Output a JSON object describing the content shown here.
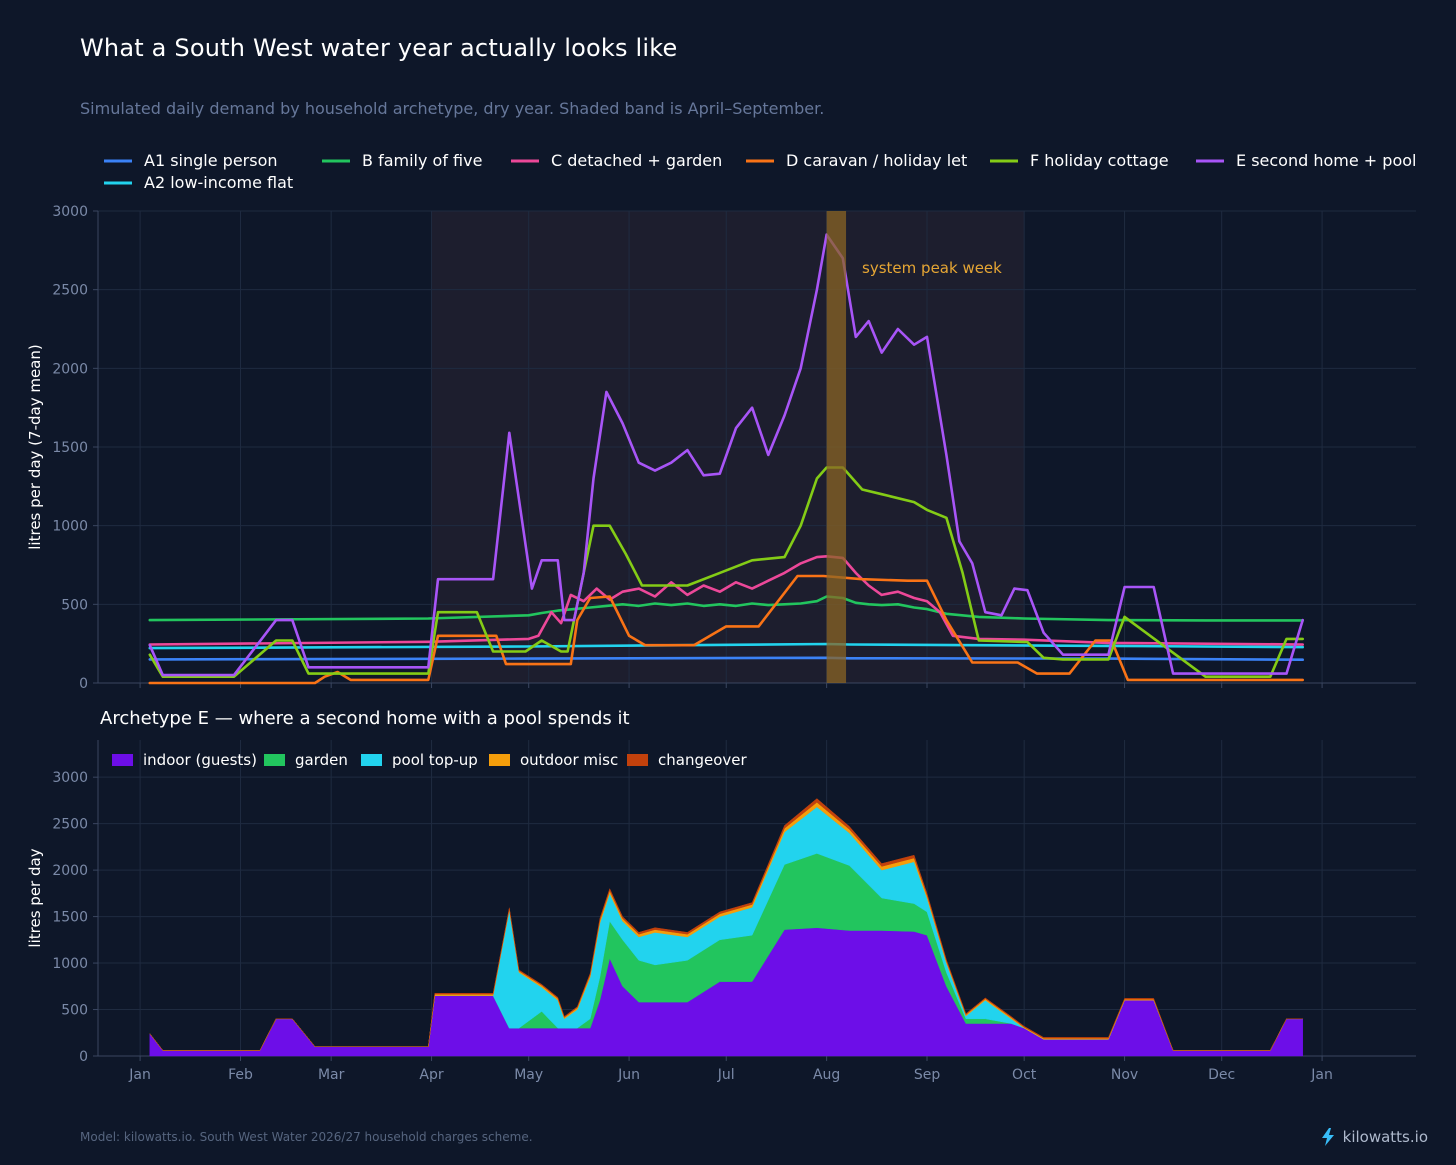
{
  "title": "What a South West water year actually looks like",
  "subtitle": "Simulated daily demand by household archetype, dry year. Shaded band is April–September.",
  "footer": {
    "note": "Model: kilowatts.io. South West Water 2026/27 household charges scheme.",
    "brand": "kilowatts.io",
    "brand_icon": "lightning-bolt-icon"
  },
  "colors": {
    "background": "#0e1729",
    "grid": "#1f2b40",
    "season_band": "#1d1e2e",
    "peak_week": "#8a6424",
    "peak_label": "#e6a634"
  },
  "chart_data": [
    {
      "type": "line",
      "ylabel": "litres per day (7-day mean)",
      "ylim": [
        0,
        3000
      ],
      "yticks": [
        0,
        500,
        1000,
        1500,
        2000,
        2500,
        3000
      ],
      "x_unit": "day of year",
      "xlim": [
        -12,
        395
      ],
      "months": [
        "Jan",
        "Feb",
        "Mar",
        "Apr",
        "May",
        "Jun",
        "Jul",
        "Aug",
        "Sep",
        "Oct",
        "Nov",
        "Dec",
        "Jan"
      ],
      "month_days": [
        1,
        32,
        60,
        91,
        121,
        152,
        182,
        213,
        244,
        274,
        305,
        335,
        366
      ],
      "grid": true,
      "legend": "top",
      "shaded_band": {
        "label": "April–September",
        "x": [
          91,
          274
        ]
      },
      "peak_week": {
        "label": "system peak week",
        "x": [
          213,
          219
        ]
      },
      "series": [
        {
          "name": "A1  single person",
          "color": "#3b82f6",
          "x": [
            4,
            120,
            213,
            220,
            300,
            360
          ],
          "y": [
            150,
            155,
            160,
            157,
            155,
            148
          ]
        },
        {
          "name": "A2  low-income flat",
          "color": "#22d3ee",
          "x": [
            4,
            120,
            213,
            220,
            300,
            360
          ],
          "y": [
            222,
            232,
            248,
            245,
            236,
            228
          ]
        },
        {
          "name": "B  family of five",
          "color": "#22c55e",
          "x": [
            4,
            90,
            121,
            125,
            130,
            135,
            140,
            145,
            150,
            155,
            160,
            165,
            170,
            175,
            180,
            185,
            190,
            195,
            200,
            205,
            210,
            213,
            218,
            222,
            226,
            230,
            235,
            240,
            244,
            250,
            260,
            274,
            300,
            330,
            360
          ],
          "y": [
            400,
            410,
            430,
            445,
            460,
            470,
            480,
            490,
            500,
            490,
            505,
            495,
            505,
            490,
            500,
            490,
            505,
            495,
            500,
            505,
            520,
            550,
            540,
            510,
            500,
            495,
            500,
            480,
            470,
            440,
            420,
            410,
            400,
            398,
            398
          ]
        },
        {
          "name": "C  detached + garden",
          "color": "#ec4899",
          "x": [
            4,
            90,
            121,
            124,
            128,
            131,
            134,
            138,
            142,
            146,
            150,
            155,
            160,
            165,
            170,
            175,
            180,
            185,
            190,
            195,
            200,
            205,
            210,
            213,
            218,
            222,
            226,
            230,
            235,
            240,
            244,
            248,
            252,
            260,
            274,
            300,
            360
          ],
          "y": [
            245,
            262,
            280,
            300,
            450,
            380,
            560,
            520,
            600,
            530,
            580,
            600,
            550,
            640,
            560,
            620,
            580,
            640,
            600,
            650,
            700,
            760,
            800,
            805,
            795,
            700,
            620,
            560,
            580,
            540,
            520,
            450,
            300,
            280,
            275,
            255,
            245
          ]
        },
        {
          "name": "D  caravan / holiday let",
          "color": "#f97316",
          "x": [
            4,
            55,
            58,
            62,
            66,
            72,
            82,
            90,
            93,
            111,
            114,
            134,
            136,
            140,
            146,
            152,
            157,
            162,
            172,
            182,
            192,
            204,
            212,
            224,
            238,
            244,
            250,
            258,
            272,
            278,
            288,
            296,
            301,
            306,
            318,
            350,
            360
          ],
          "y": [
            0,
            0,
            40,
            70,
            20,
            20,
            20,
            20,
            300,
            300,
            120,
            120,
            400,
            540,
            550,
            300,
            240,
            240,
            240,
            360,
            360,
            680,
            680,
            660,
            650,
            650,
            400,
            130,
            130,
            60,
            60,
            270,
            270,
            20,
            20,
            20,
            20
          ]
        },
        {
          "name": "F  holiday cottage",
          "color": "#84cc16",
          "x": [
            4,
            8,
            30,
            43,
            48,
            53,
            65,
            70,
            90,
            93,
            105,
            110,
            120,
            125,
            131,
            133,
            138,
            141,
            146,
            151,
            156,
            161,
            170,
            180,
            190,
            200,
            205,
            210,
            213,
            218,
            224,
            230,
            240,
            244,
            250,
            255,
            260,
            275,
            280,
            286,
            300,
            305,
            330,
            350,
            355,
            360
          ],
          "y": [
            180,
            40,
            40,
            270,
            270,
            60,
            60,
            60,
            60,
            450,
            450,
            200,
            200,
            270,
            200,
            200,
            700,
            1000,
            1000,
            820,
            620,
            620,
            620,
            700,
            780,
            800,
            1000,
            1300,
            1370,
            1370,
            1230,
            1200,
            1150,
            1100,
            1050,
            700,
            270,
            260,
            160,
            150,
            150,
            420,
            40,
            40,
            280,
            280
          ]
        },
        {
          "name": "E  second home + pool",
          "color": "#a855f7",
          "x": [
            4,
            8,
            30,
            43,
            48,
            53,
            65,
            78,
            90,
            93,
            110,
            115,
            122,
            125,
            130,
            132,
            135,
            138,
            141,
            145,
            150,
            155,
            160,
            165,
            170,
            175,
            180,
            185,
            190,
            195,
            200,
            205,
            210,
            213,
            218,
            222,
            226,
            230,
            235,
            240,
            244,
            250,
            254,
            258,
            262,
            267,
            271,
            275,
            280,
            286,
            300,
            305,
            314,
            320,
            325,
            355,
            360
          ],
          "y": [
            240,
            50,
            50,
            400,
            400,
            100,
            100,
            100,
            100,
            660,
            660,
            1590,
            600,
            780,
            780,
            400,
            400,
            700,
            1300,
            1850,
            1650,
            1400,
            1350,
            1400,
            1480,
            1320,
            1330,
            1620,
            1750,
            1450,
            1700,
            2000,
            2500,
            2850,
            2700,
            2200,
            2300,
            2100,
            2250,
            2150,
            2200,
            1450,
            900,
            760,
            450,
            430,
            600,
            590,
            320,
            180,
            180,
            610,
            610,
            60,
            60,
            60,
            400
          ]
        }
      ]
    },
    {
      "type": "area",
      "title": "Archetype E — where a second home with a pool spends it",
      "ylabel": "litres per day",
      "ylim": [
        0,
        3400
      ],
      "yticks": [
        0,
        500,
        1000,
        1500,
        2000,
        2500,
        3000
      ],
      "x_unit": "day of year",
      "xlim": [
        -12,
        395
      ],
      "months": [
        "Jan",
        "Feb",
        "Mar",
        "Apr",
        "May",
        "Jun",
        "Jul",
        "Aug",
        "Sep",
        "Oct",
        "Nov",
        "Dec",
        "Jan"
      ],
      "month_days": [
        1,
        32,
        60,
        91,
        121,
        152,
        182,
        213,
        244,
        274,
        305,
        335,
        366
      ],
      "grid": true,
      "legend": "top-left",
      "stacked": true,
      "x": [
        4,
        8,
        30,
        38,
        43,
        48,
        55,
        65,
        82,
        90,
        92,
        105,
        110,
        115,
        118,
        125,
        130,
        132,
        136,
        140,
        143,
        146,
        150,
        155,
        160,
        170,
        180,
        190,
        200,
        210,
        220,
        230,
        240,
        244,
        250,
        256,
        262,
        270,
        274,
        280,
        286,
        300,
        305,
        314,
        320,
        325,
        350,
        355,
        360
      ],
      "series": [
        {
          "name": "indoor (guests)",
          "color": "#6d0ee8",
          "y": [
            240,
            60,
            60,
            60,
            400,
            400,
            100,
            100,
            100,
            100,
            650,
            650,
            650,
            300,
            300,
            300,
            300,
            300,
            300,
            300,
            600,
            1050,
            750,
            580,
            580,
            580,
            800,
            800,
            1360,
            1380,
            1350,
            1350,
            1340,
            1300,
            750,
            350,
            350,
            350,
            300,
            180,
            180,
            180,
            600,
            600,
            60,
            60,
            60,
            400,
            400
          ]
        },
        {
          "name": "garden",
          "color": "#22c55e",
          "y": [
            0,
            0,
            0,
            0,
            0,
            0,
            0,
            0,
            0,
            0,
            0,
            0,
            0,
            0,
            0,
            180,
            0,
            0,
            0,
            100,
            250,
            400,
            500,
            450,
            400,
            450,
            450,
            500,
            700,
            800,
            700,
            350,
            300,
            250,
            150,
            50,
            50,
            0,
            0,
            0,
            0,
            0,
            0,
            0,
            0,
            0,
            0,
            0,
            0
          ]
        },
        {
          "name": "pool top-up",
          "color": "#22d3ee",
          "y": [
            0,
            0,
            0,
            0,
            0,
            0,
            0,
            0,
            0,
            0,
            0,
            0,
            0,
            1270,
            600,
            260,
            300,
            100,
            200,
            450,
            580,
            300,
            200,
            250,
            350,
            250,
            250,
            300,
            350,
            500,
            350,
            300,
            450,
            150,
            100,
            30,
            200,
            50,
            0,
            0,
            0,
            0,
            0,
            0,
            0,
            0,
            0,
            0,
            0
          ]
        },
        {
          "name": "outdoor misc",
          "color": "#f59e0b",
          "y": [
            0,
            0,
            0,
            0,
            0,
            0,
            0,
            0,
            0,
            0,
            15,
            15,
            15,
            15,
            15,
            20,
            20,
            15,
            20,
            25,
            30,
            30,
            30,
            30,
            30,
            30,
            30,
            30,
            40,
            50,
            40,
            40,
            40,
            30,
            20,
            15,
            15,
            15,
            10,
            10,
            10,
            10,
            10,
            10,
            0,
            0,
            0,
            0,
            0
          ]
        },
        {
          "name": "changeover",
          "color": "#c2410c",
          "y": [
            0,
            0,
            0,
            0,
            0,
            0,
            0,
            0,
            0,
            0,
            10,
            10,
            10,
            10,
            10,
            10,
            10,
            10,
            10,
            15,
            20,
            20,
            20,
            20,
            20,
            20,
            20,
            20,
            30,
            40,
            30,
            30,
            30,
            20,
            15,
            10,
            10,
            10,
            10,
            10,
            10,
            10,
            10,
            10,
            0,
            0,
            0,
            0,
            0
          ]
        }
      ]
    }
  ]
}
